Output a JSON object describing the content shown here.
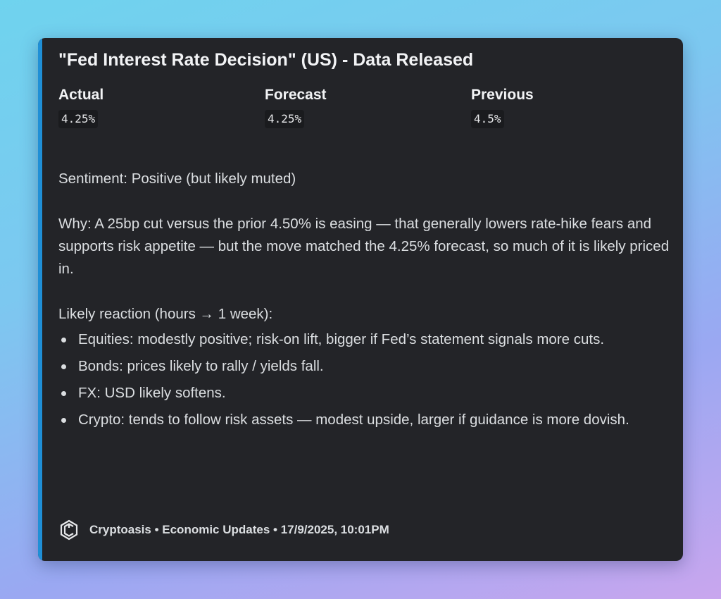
{
  "embed": {
    "title": "\"Fed Interest Rate Decision\" (US) - Data Released",
    "accent_color": "#1f8fd6",
    "fields": [
      {
        "label": "Actual",
        "value": "4.25%"
      },
      {
        "label": "Forecast",
        "value": "4.25%"
      },
      {
        "label": "Previous",
        "value": "4.5%"
      }
    ],
    "sentiment": "Sentiment: Positive (but likely muted)",
    "why": "Why: A 25bp cut versus the prior 4.50% is easing — that generally lowers rate-hike fears and supports risk appetite — but the move matched the 4.25% forecast, so much of it is likely priced in.",
    "reaction_heading": "Likely reaction (hours → 1 week):",
    "reactions": [
      "Equities: modestly positive; risk-on lift, bigger if Fed’s statement signals more cuts.",
      "Bonds: prices likely to rally / yields fall.",
      "FX: USD likely softens.",
      "Crypto: tends to follow risk assets — modest upside, larger if guidance is more dovish."
    ],
    "footer": {
      "icon": "cryptoasis-logo-icon",
      "text": "Cryptoasis • Economic Updates • 17/9/2025, 10:01PM"
    }
  }
}
